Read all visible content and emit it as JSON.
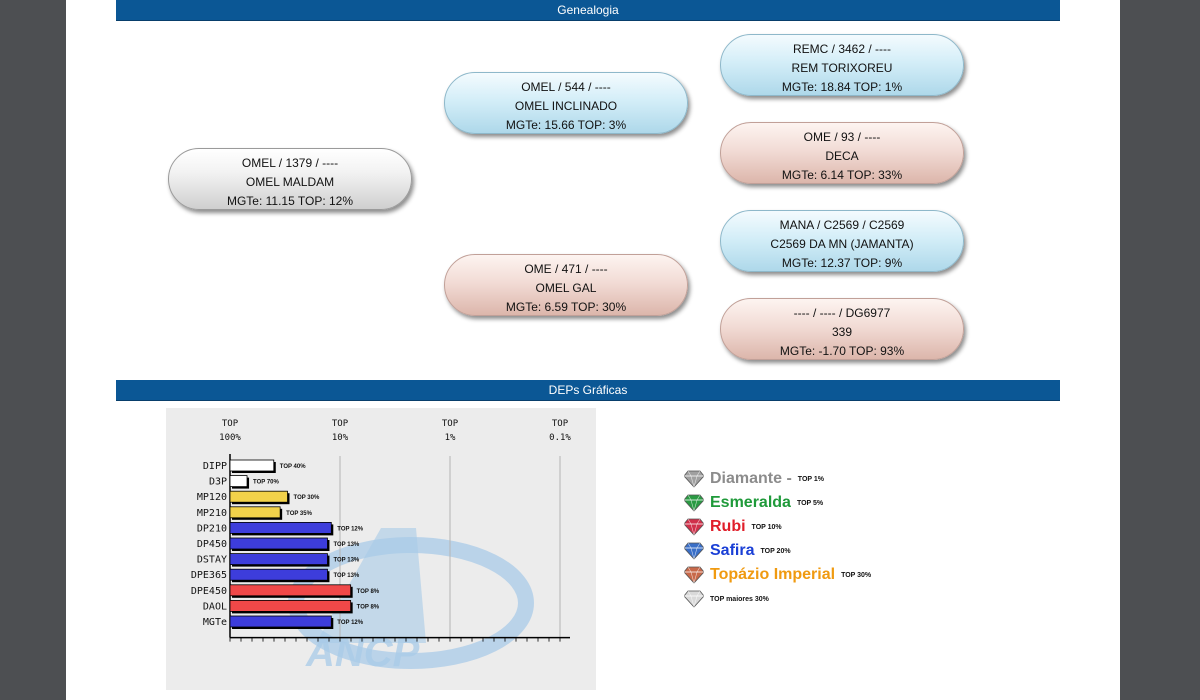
{
  "sections": {
    "genealogy_title": "Genealogia",
    "deps_title": "DEPs Gráficas"
  },
  "genealogy": {
    "root": {
      "l1": "OMEL / 1379 / ----",
      "l2": "OMEL MALDAM",
      "l3": "MGTe: 11.15   TOP: 12%"
    },
    "sire": {
      "l1": "OMEL / 544 / ----",
      "l2": "OMEL INCLINADO",
      "l3": "MGTe: 15.66   TOP: 3%"
    },
    "dam": {
      "l1": "OME / 471 / ----",
      "l2": "OMEL GAL",
      "l3": "MGTe: 6.59   TOP: 30%"
    },
    "sire_sire": {
      "l1": "REMC / 3462 / ----",
      "l2": "REM TORIXOREU",
      "l3": "MGTe: 18.84   TOP: 1%"
    },
    "sire_dam": {
      "l1": "OME / 93 / ----",
      "l2": "DECA",
      "l3": "MGTe: 6.14   TOP: 33%"
    },
    "dam_sire": {
      "l1": "MANA / C2569 / C2569",
      "l2": "C2569 DA MN (JAMANTA)",
      "l3": "MGTe: 12.37   TOP: 9%"
    },
    "dam_dam": {
      "l1": "---- / ---- / DG6977",
      "l2": "339",
      "l3": "MGTe: -1.70   TOP: 93%"
    }
  },
  "chart_data": {
    "type": "bar",
    "orientation": "horizontal",
    "x_axis_labels": [
      {
        "top": "TOP",
        "value": "100%"
      },
      {
        "top": "TOP",
        "value": "10%"
      },
      {
        "top": "TOP",
        "value": "1%"
      },
      {
        "top": "TOP",
        "value": "0.1%"
      }
    ],
    "categories": [
      "DIPP",
      "D3P",
      "MP120",
      "MP210",
      "DP210",
      "DP450",
      "DSTAY",
      "DPE365",
      "DPE450",
      "DAOL",
      "MGTe"
    ],
    "values": [
      40,
      70,
      30,
      35,
      12,
      13,
      13,
      13,
      8,
      8,
      12
    ],
    "bar_labels": [
      "TOP 40%",
      "TOP 70%",
      "TOP 30%",
      "TOP 35%",
      "TOP 12%",
      "TOP 13%",
      "TOP 13%",
      "TOP 13%",
      "TOP 8%",
      "TOP 8%",
      "TOP 12%"
    ],
    "bar_colors": [
      "#ffffff",
      "#ffffff",
      "#f2d24a",
      "#f2d24a",
      "#3d3ddb",
      "#3d3ddb",
      "#3d3ddb",
      "#3d3ddb",
      "#f04848",
      "#f04848",
      "#3d3ddb"
    ],
    "x_scale": "log (TOP %, 100% to 0.1%)",
    "watermark": "ANCP"
  },
  "legend": [
    {
      "name": "Diamante -",
      "top": "TOP 1%",
      "color": "#8c8c8c",
      "gem_color": "#a0a0a0"
    },
    {
      "name": "Esmeralda",
      "top": "TOP 5%",
      "color": "#1f9a3a",
      "gem_color": "#2a9a43"
    },
    {
      "name": "Rubi",
      "top": "TOP 10%",
      "color": "#e01e2a",
      "gem_color": "#d0304a"
    },
    {
      "name": "Safira",
      "top": "TOP 20%",
      "color": "#1a3fd6",
      "gem_color": "#3a6fc7"
    },
    {
      "name": "Topázio Imperial",
      "top": "TOP 30%",
      "color": "#f09a10",
      "gem_color": "#c8694a"
    },
    {
      "name": "",
      "top": "TOP maiores 30%",
      "color": "#111111",
      "gem_color": "#d9d9d9"
    }
  ]
}
